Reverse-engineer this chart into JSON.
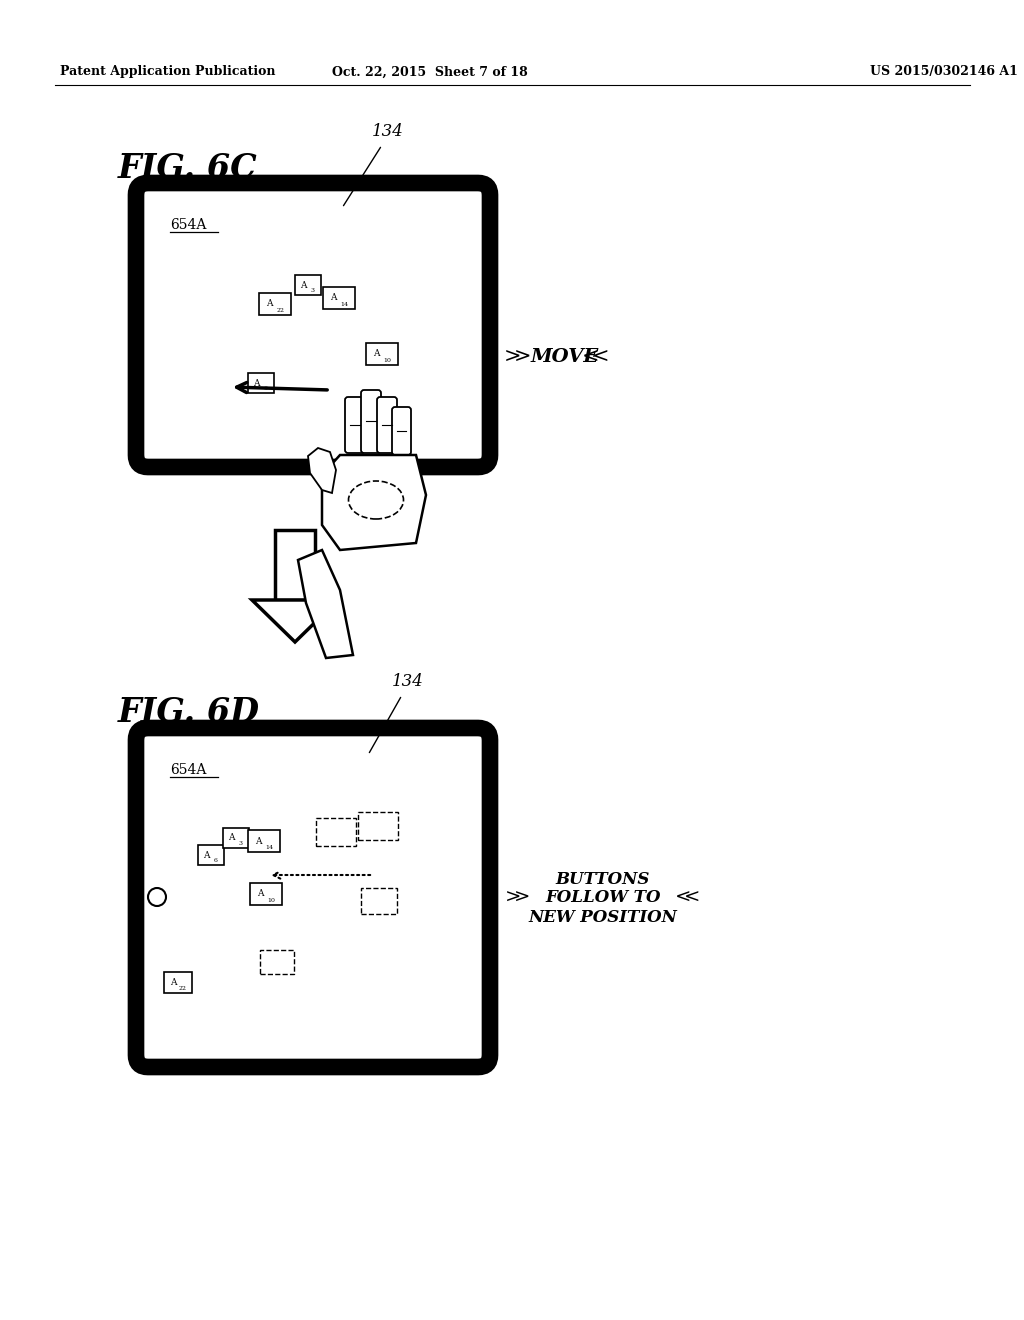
{
  "bg_color": "#ffffff",
  "header_left": "Patent Application Publication",
  "header_center": "Oct. 22, 2015  Sheet 7 of 18",
  "header_right": "US 2015/0302146 A1",
  "fig6c_label": "FIG. 6C",
  "fig6d_label": "FIG. 6D",
  "ref134": "134",
  "screen_label": "654A",
  "move_text": "MOVE",
  "buttons_line1": "BUTTONS",
  "buttons_line2": "FOLLOW TO",
  "buttons_line3": "NEW POSITION"
}
